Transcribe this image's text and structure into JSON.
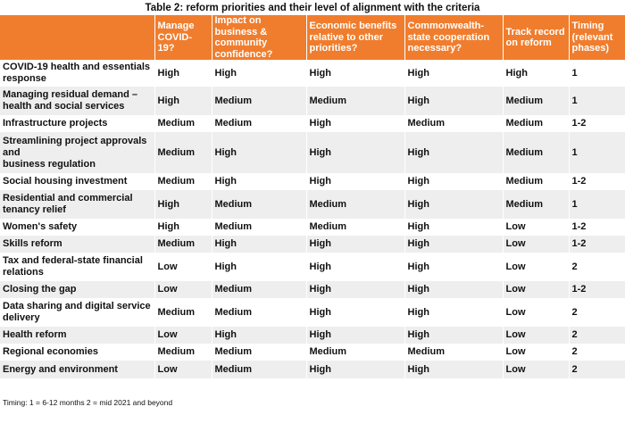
{
  "title": "Table 2: reform priorities and their level of alignment with the criteria",
  "headers": [
    "",
    "Manage COVID-19?",
    "Impact on business & community confidence?",
    "Economic benefits relative to other priorities?",
    "Commonwealth-state cooperation necessary?",
    "Track record on reform",
    "Timing (relevant phases)"
  ],
  "rows": [
    {
      "label": "COVID-19 health and essentials response",
      "values": [
        "High",
        "High",
        "High",
        "High",
        "High",
        "1"
      ]
    },
    {
      "label": "Managing residual demand – health and social services",
      "values": [
        "High",
        "Medium",
        "Medium",
        "High",
        "Medium",
        "1"
      ]
    },
    {
      "label": "Infrastructure projects",
      "values": [
        "Medium",
        "Medium",
        "High",
        "Medium",
        "Medium",
        "1-2"
      ]
    },
    {
      "label": "Streamlining project approvals and\nbusiness regulation",
      "values": [
        "Medium",
        "High",
        "High",
        "High",
        "Medium",
        "1"
      ]
    },
    {
      "label": "Social housing investment",
      "values": [
        "Medium",
        "High",
        "High",
        "High",
        "Medium",
        "1-2"
      ]
    },
    {
      "label": "Residential and commercial tenancy relief",
      "values": [
        "High",
        "Medium",
        "Medium",
        "High",
        "Medium",
        "1"
      ]
    },
    {
      "label": "Women's safety",
      "values": [
        "High",
        "Medium",
        "Medium",
        "High",
        "Low",
        "1-2"
      ]
    },
    {
      "label": "Skills reform",
      "values": [
        "Medium",
        "High",
        "High",
        "High",
        "Low",
        "1-2"
      ]
    },
    {
      "label": "Tax and federal-state financial relations",
      "values": [
        "Low",
        "High",
        "High",
        "High",
        "Low",
        "2"
      ]
    },
    {
      "label": "Closing the gap",
      "values": [
        "Low",
        "Medium",
        "High",
        "High",
        "Low",
        "1-2"
      ]
    },
    {
      "label": "Data sharing and digital service delivery",
      "values": [
        "Medium",
        "Medium",
        "High",
        "High",
        "Low",
        "2"
      ]
    },
    {
      "label": "Health reform",
      "values": [
        "Low",
        "High",
        "High",
        "High",
        "Low",
        "2"
      ]
    },
    {
      "label": "Regional economies",
      "values": [
        "Medium",
        "Medium",
        "Medium",
        "Medium",
        "Low",
        "2"
      ]
    },
    {
      "label": "Energy and environment",
      "values": [
        "Low",
        "Medium",
        "High",
        "High",
        "Low",
        "2"
      ]
    }
  ],
  "footer": "Timing:  1 = 6-12 months  2 = mid 2021 and beyond",
  "colors": {
    "header_bg": "#f07d2d",
    "stripe": "#eeeeee"
  }
}
